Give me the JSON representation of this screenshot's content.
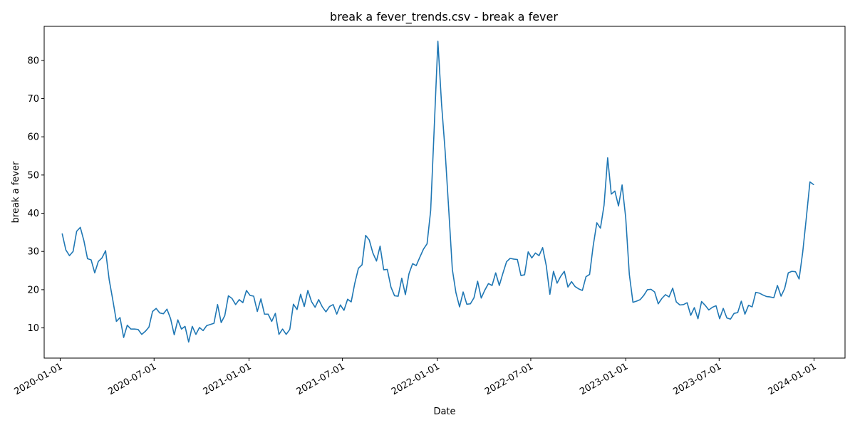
{
  "chart_data": {
    "type": "line",
    "title": "break a fever_trends.csv - break a fever",
    "xlabel": "Date",
    "ylabel": "break a fever",
    "line_color": "#1f77b4",
    "xlim": [
      "2019-12-01",
      "2024-03-01"
    ],
    "ylim": [
      2.1,
      88.9
    ],
    "y_ticks": [
      10,
      20,
      30,
      40,
      50,
      60,
      70,
      80
    ],
    "x_ticks": [
      "2020-01-01",
      "2020-07-01",
      "2021-01-01",
      "2021-07-01",
      "2022-01-01",
      "2022-07-01",
      "2023-01-01",
      "2023-07-01",
      "2024-01-01"
    ],
    "grid": false,
    "legend": "none",
    "series": [
      {
        "x": [
          "2020-01-05",
          "2020-01-12",
          "2020-01-19",
          "2020-01-26",
          "2020-02-02",
          "2020-02-09",
          "2020-02-16",
          "2020-02-23",
          "2020-03-01",
          "2020-03-08",
          "2020-03-15",
          "2020-03-22",
          "2020-03-29",
          "2020-04-05",
          "2020-04-12",
          "2020-04-19",
          "2020-04-26",
          "2020-05-03",
          "2020-05-10",
          "2020-05-17",
          "2020-05-24",
          "2020-05-31",
          "2020-06-07",
          "2020-06-14",
          "2020-06-21",
          "2020-06-28",
          "2020-07-05",
          "2020-07-12",
          "2020-07-19",
          "2020-07-26",
          "2020-08-02",
          "2020-08-09",
          "2020-08-16",
          "2020-08-23",
          "2020-08-30",
          "2020-09-06",
          "2020-09-13",
          "2020-09-20",
          "2020-09-27",
          "2020-10-04",
          "2020-10-11",
          "2020-10-18",
          "2020-10-25",
          "2020-11-01",
          "2020-11-08",
          "2020-11-15",
          "2020-11-22",
          "2020-11-29",
          "2020-12-06",
          "2020-12-13",
          "2020-12-20",
          "2020-12-27",
          "2021-01-03",
          "2021-01-10",
          "2021-01-17",
          "2021-01-24",
          "2021-01-31",
          "2021-02-07",
          "2021-02-14",
          "2021-02-21",
          "2021-02-28",
          "2021-03-07",
          "2021-03-14",
          "2021-03-21",
          "2021-03-28",
          "2021-04-04",
          "2021-04-11",
          "2021-04-18",
          "2021-04-25",
          "2021-05-02",
          "2021-05-09",
          "2021-05-16",
          "2021-05-23",
          "2021-05-30",
          "2021-06-06",
          "2021-06-13",
          "2021-06-20",
          "2021-06-27",
          "2021-07-04",
          "2021-07-11",
          "2021-07-18",
          "2021-07-25",
          "2021-08-01",
          "2021-08-08",
          "2021-08-15",
          "2021-08-22",
          "2021-08-29",
          "2021-09-05",
          "2021-09-12",
          "2021-09-19",
          "2021-09-26",
          "2021-10-03",
          "2021-10-10",
          "2021-10-17",
          "2021-10-24",
          "2021-10-31",
          "2021-11-07",
          "2021-11-14",
          "2021-11-21",
          "2021-11-28",
          "2021-12-05",
          "2021-12-12",
          "2021-12-19",
          "2021-12-26",
          "2022-01-02",
          "2022-01-09",
          "2022-01-16",
          "2022-01-23",
          "2022-01-30",
          "2022-02-06",
          "2022-02-13",
          "2022-02-20",
          "2022-02-27",
          "2022-03-06",
          "2022-03-13",
          "2022-03-20",
          "2022-03-27",
          "2022-04-03",
          "2022-04-10",
          "2022-04-17",
          "2022-04-24",
          "2022-05-01",
          "2022-05-08",
          "2022-05-15",
          "2022-05-22",
          "2022-05-29",
          "2022-06-05",
          "2022-06-12",
          "2022-06-19",
          "2022-06-26",
          "2022-07-03",
          "2022-07-10",
          "2022-07-17",
          "2022-07-24",
          "2022-07-31",
          "2022-08-07",
          "2022-08-14",
          "2022-08-21",
          "2022-08-28",
          "2022-09-04",
          "2022-09-11",
          "2022-09-18",
          "2022-09-25",
          "2022-10-02",
          "2022-10-09",
          "2022-10-16",
          "2022-10-23",
          "2022-10-30",
          "2022-11-06",
          "2022-11-13",
          "2022-11-20",
          "2022-11-27",
          "2022-12-04",
          "2022-12-11",
          "2022-12-18",
          "2022-12-25",
          "2023-01-01",
          "2023-01-08",
          "2023-01-15",
          "2023-01-22",
          "2023-01-29",
          "2023-02-05",
          "2023-02-12",
          "2023-02-19",
          "2023-02-26",
          "2023-03-05",
          "2023-03-12",
          "2023-03-19",
          "2023-03-26",
          "2023-04-02",
          "2023-04-09",
          "2023-04-16",
          "2023-04-23",
          "2023-04-30",
          "2023-05-07",
          "2023-05-14",
          "2023-05-21",
          "2023-05-28",
          "2023-06-04",
          "2023-06-11",
          "2023-06-18",
          "2023-06-25",
          "2023-07-02",
          "2023-07-09",
          "2023-07-16",
          "2023-07-23",
          "2023-07-30",
          "2023-08-06",
          "2023-08-13",
          "2023-08-20",
          "2023-08-27",
          "2023-09-03",
          "2023-09-10",
          "2023-09-17",
          "2023-09-24",
          "2023-10-01",
          "2023-10-08",
          "2023-10-15",
          "2023-10-22",
          "2023-10-29",
          "2023-11-05",
          "2023-11-12",
          "2023-11-19",
          "2023-11-26",
          "2023-12-03",
          "2023-12-10",
          "2023-12-17",
          "2023-12-24",
          "2023-12-31"
        ],
        "values": [
          34.6,
          30.4,
          28.9,
          30.0,
          35.3,
          36.3,
          32.8,
          28.1,
          27.8,
          24.4,
          27.4,
          28.3,
          30.2,
          22.6,
          17.3,
          11.7,
          12.7,
          7.5,
          10.7,
          9.7,
          9.7,
          9.6,
          8.3,
          9.1,
          10.2,
          14.3,
          15.1,
          13.9,
          13.7,
          14.9,
          12.4,
          8.2,
          12.1,
          9.7,
          10.4,
          6.3,
          10.4,
          8.3,
          10.1,
          9.3,
          10.6,
          10.9,
          11.2,
          16.1,
          11.4,
          13.2,
          18.4,
          17.7,
          16.1,
          17.4,
          16.6,
          19.8,
          18.5,
          18.3,
          14.3,
          17.6,
          13.6,
          13.6,
          11.7,
          13.8,
          8.3,
          9.7,
          8.3,
          9.6,
          16.2,
          14.8,
          18.8,
          15.6,
          19.8,
          16.9,
          15.4,
          17.4,
          15.5,
          14.2,
          15.6,
          16.1,
          13.6,
          16.0,
          14.6,
          17.5,
          16.8,
          21.7,
          25.6,
          26.5,
          34.2,
          33.0,
          29.6,
          27.5,
          31.4,
          25.2,
          25.3,
          20.7,
          18.4,
          18.3,
          23.0,
          18.7,
          24.2,
          26.8,
          26.3,
          28.5,
          30.6,
          32.0,
          40.7,
          62.7,
          85.0,
          68.8,
          56.3,
          41.0,
          25.3,
          19.2,
          15.5,
          19.4,
          16.2,
          16.3,
          17.9,
          22.2,
          17.8,
          19.9,
          21.6,
          21.1,
          24.4,
          21.1,
          24.3,
          27.3,
          28.2,
          28.0,
          27.9,
          23.7,
          23.9,
          29.9,
          28.3,
          29.6,
          28.9,
          31.0,
          26.3,
          18.8,
          24.8,
          21.7,
          23.5,
          24.8,
          20.7,
          22.1,
          20.8,
          20.2,
          19.8,
          23.4,
          24.0,
          31.5,
          37.5,
          36.1,
          42.1,
          54.5,
          45.0,
          45.8,
          41.9,
          47.4,
          38.8,
          24.0,
          16.7,
          17.0,
          17.4,
          18.5,
          20.0,
          20.1,
          19.4,
          16.3,
          17.7,
          18.7,
          18.1,
          20.4,
          16.8,
          16.0,
          16.1,
          16.6,
          13.3,
          15.3,
          12.4,
          16.9,
          15.9,
          14.7,
          15.4,
          15.8,
          12.4,
          15.1,
          12.6,
          12.3,
          13.8,
          14.0,
          17.0,
          13.6,
          15.9,
          15.5,
          19.3,
          19.1,
          18.6,
          18.2,
          18.1,
          17.9,
          21.1,
          18.3,
          20.3,
          24.4,
          24.8,
          24.7,
          22.8,
          29.8,
          38.8,
          48.2,
          47.5
        ]
      }
    ]
  }
}
